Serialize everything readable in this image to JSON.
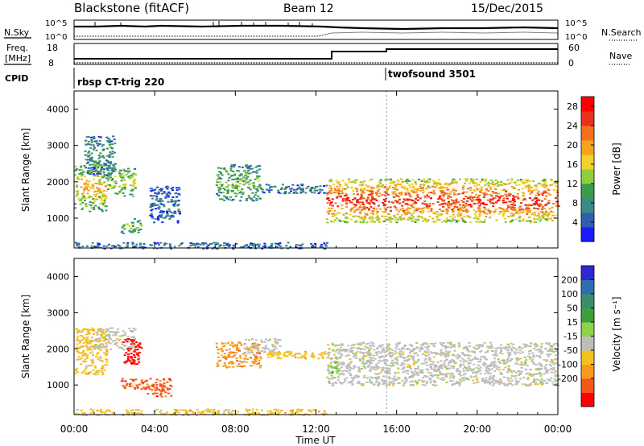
{
  "header": {
    "station": "Blackstone (fitACF)",
    "beam": "Beam 12",
    "date": "15/Dec/2015"
  },
  "summary_panel": {
    "nsky_label": "N.Sky",
    "nsearch_label": "N.Search",
    "freq_label_line1": "Freq.",
    "freq_label_line2": "[MHz]",
    "nave_label": "Nave",
    "cpid_label": "CPID",
    "left_ticks_top": [
      "10^5",
      "10^0"
    ],
    "right_ticks_top": [
      "10^5",
      "10^0"
    ],
    "freq_ticks": [
      "18",
      "8"
    ],
    "nave_ticks": [
      "60",
      "0"
    ],
    "cpid_segments": [
      {
        "label": "rbsp CT-trig 220",
        "start_hour": 0.0,
        "end_hour": 15.5
      },
      {
        "label": "twofsound 3501",
        "start_hour": 15.5,
        "end_hour": 24.0
      }
    ]
  },
  "chart_data": [
    {
      "type": "heatmap",
      "panel": "power",
      "ylabel": "Slant Range [km]",
      "xlabel": "Time UT",
      "x_ticks": [
        "00:00",
        "04:00",
        "08:00",
        "12:00",
        "16:00",
        "20:00",
        "00:00"
      ],
      "xlim_hours": [
        0,
        24
      ],
      "y_ticks": [
        1000,
        2000,
        3000,
        4000
      ],
      "ylim": [
        180,
        4500
      ],
      "colorbar_label": "Power [dB]",
      "colorbar_ticks": [
        4,
        8,
        12,
        16,
        20,
        24,
        28
      ],
      "colorbar_range": [
        0,
        30
      ],
      "colors": [
        "#1a1aff",
        "#2f5fae",
        "#3b8a8a",
        "#3a9c4a",
        "#8ccf3a",
        "#f2d22a",
        "#f5a31f",
        "#f2701e",
        "#e8331a",
        "#ff0000"
      ],
      "regions": [
        {
          "t0": 0.0,
          "t1": 1.6,
          "r_low": 1200,
          "r_high": 2500,
          "level": 0.55
        },
        {
          "t0": 0.5,
          "t1": 2.0,
          "r_low": 2200,
          "r_high": 3300,
          "level": 0.25
        },
        {
          "t0": 1.6,
          "t1": 3.0,
          "r_low": 1600,
          "r_high": 2400,
          "level": 0.45
        },
        {
          "t0": 2.3,
          "t1": 3.3,
          "r_low": 600,
          "r_high": 1000,
          "level": 0.35
        },
        {
          "t0": 3.7,
          "t1": 5.2,
          "r_low": 900,
          "r_high": 1900,
          "level": 0.15
        },
        {
          "t0": 7.0,
          "t1": 9.2,
          "r_low": 1500,
          "r_high": 2500,
          "level": 0.35
        },
        {
          "t0": 9.2,
          "t1": 12.5,
          "r_low": 1700,
          "r_high": 1950,
          "level": 0.2
        },
        {
          "t0": 12.5,
          "t1": 24.0,
          "r_low": 900,
          "r_high": 2100,
          "level": 0.8
        },
        {
          "t0": 0.0,
          "t1": 12.5,
          "r_low": 180,
          "r_high": 350,
          "level": 0.2
        }
      ]
    },
    {
      "type": "heatmap",
      "panel": "velocity",
      "ylabel": "Slant Range [km]",
      "xlabel": "Time UT",
      "x_ticks": [
        "00:00",
        "04:00",
        "08:00",
        "12:00",
        "16:00",
        "20:00",
        "00:00"
      ],
      "xlim_hours": [
        0,
        24
      ],
      "y_ticks": [
        1000,
        2000,
        3000,
        4000
      ],
      "ylim": [
        180,
        4500
      ],
      "colorbar_label": "Velocity [m s⁻¹]",
      "colorbar_ticks": [
        200,
        100,
        50,
        15,
        -15,
        -50,
        -100,
        -200
      ],
      "colors": [
        "#2a2ad0",
        "#2f6fb0",
        "#3a8f6a",
        "#3aa03a",
        "#8ed24a",
        "#bdbdbd",
        "#f2c21e",
        "#f59a1e",
        "#f2581a",
        "#ff0000"
      ],
      "regions": [
        {
          "t0": 0.0,
          "t1": 1.6,
          "r_low": 1300,
          "r_high": 2600,
          "class": 6
        },
        {
          "t0": 1.0,
          "t1": 3.0,
          "r_low": 2000,
          "r_high": 2600,
          "class": 5
        },
        {
          "t0": 2.4,
          "t1": 3.3,
          "r_low": 1600,
          "r_high": 2300,
          "class": 9
        },
        {
          "t0": 2.3,
          "t1": 3.6,
          "r_low": 900,
          "r_high": 1200,
          "class": 8
        },
        {
          "t0": 3.6,
          "t1": 4.8,
          "r_low": 700,
          "r_high": 1200,
          "class": 8
        },
        {
          "t0": 7.0,
          "t1": 9.2,
          "r_low": 1500,
          "r_high": 2200,
          "class": 7
        },
        {
          "t0": 8.4,
          "t1": 10.2,
          "r_low": 1900,
          "r_high": 2300,
          "class": 5
        },
        {
          "t0": 9.2,
          "t1": 12.5,
          "r_low": 1750,
          "r_high": 1950,
          "class": 6
        },
        {
          "t0": 12.5,
          "t1": 24.0,
          "r_low": 1000,
          "r_high": 2200,
          "class": 5
        },
        {
          "t0": 12.6,
          "t1": 13.0,
          "r_low": 1200,
          "r_high": 1800,
          "class": 4
        },
        {
          "t0": 0.0,
          "t1": 12.5,
          "r_low": 180,
          "r_high": 350,
          "class": 6
        }
      ]
    }
  ]
}
